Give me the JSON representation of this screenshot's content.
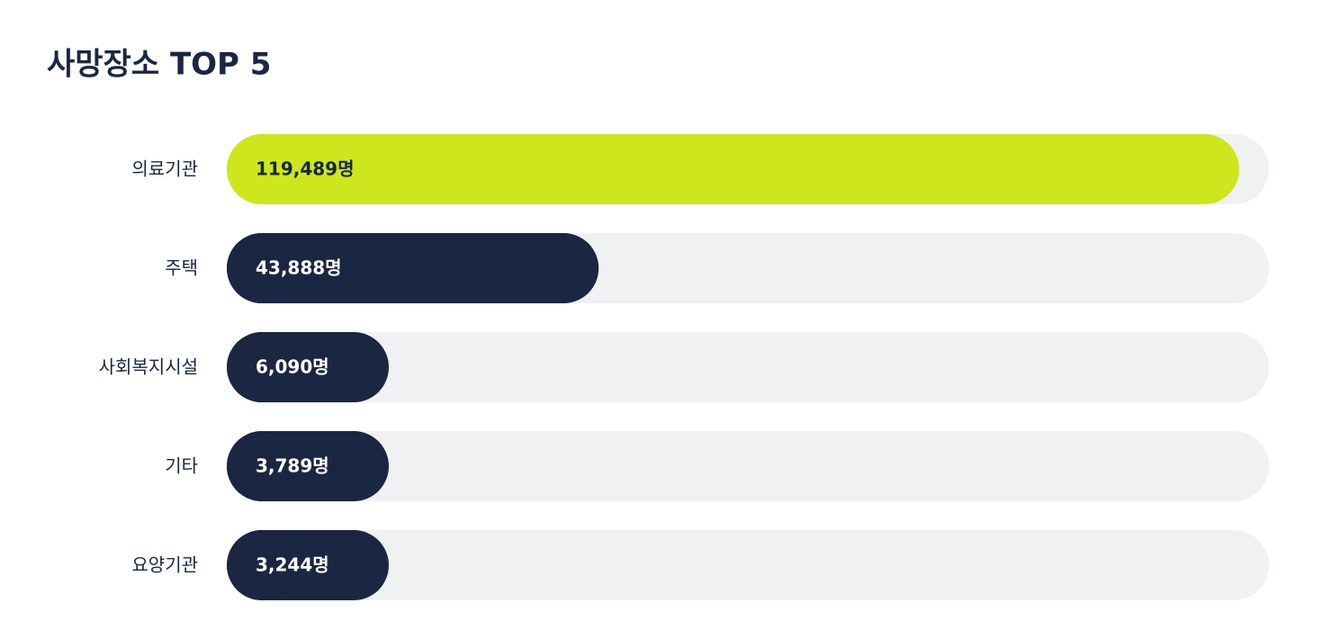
{
  "chart_data": {
    "type": "hbar",
    "title": "사망장소 TOP 5",
    "categories": [
      "의료기관",
      "주택",
      "사회복지시설",
      "기타",
      "요양기관"
    ],
    "values": [
      119489,
      43888,
      6090,
      3789,
      3244
    ],
    "value_labels": [
      "119,489명",
      "43,888명",
      "6,090명",
      "3,789명",
      "3,244명"
    ],
    "colors": [
      "#cde61e",
      "#1b2642",
      "#1b2642",
      "#1b2642",
      "#1b2642"
    ],
    "xlim": [
      0,
      123000
    ]
  }
}
